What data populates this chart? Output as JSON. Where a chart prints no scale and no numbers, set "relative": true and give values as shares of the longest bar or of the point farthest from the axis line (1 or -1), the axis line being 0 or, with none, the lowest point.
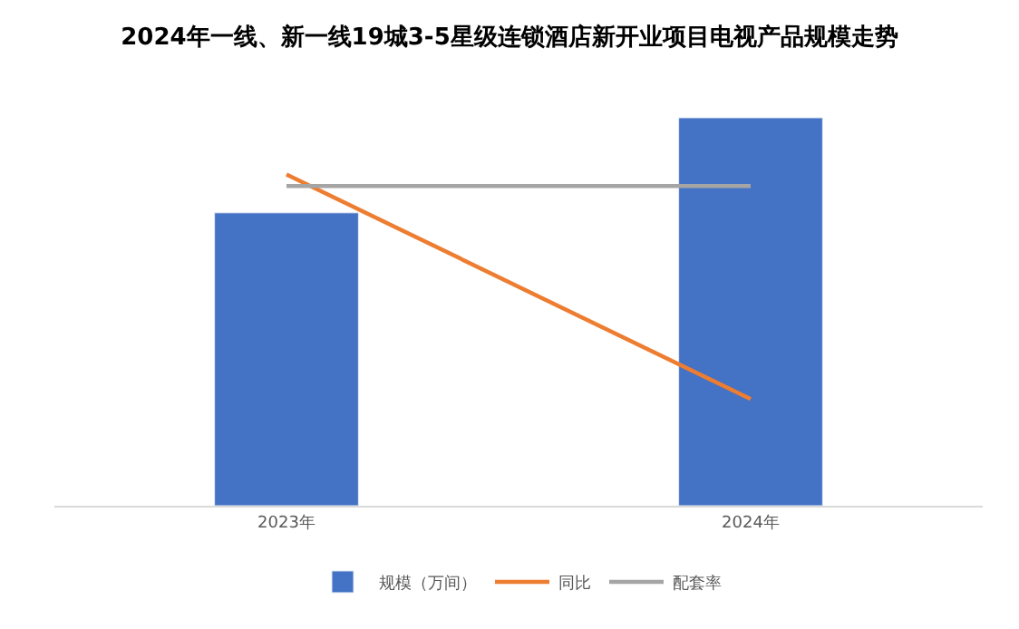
{
  "chart_data": {
    "type": "bar",
    "title": "2024年一线、新一线19城3-5星级连锁酒店新开业项目电视产品规模走势",
    "relative": true,
    "categories": [
      "2023年",
      "2024年"
    ],
    "series": [
      {
        "name": "规模（万间）",
        "color": "#4472c4",
        "values": [
          0.755,
          1
        ]
      },
      {
        "name": "同比",
        "type": "line",
        "color": "#ed7d31",
        "values": [
          0.854,
          0.275
        ]
      },
      {
        "name": "配套率",
        "type": "line",
        "color": "#a5a5a5",
        "values": [
          0.824,
          0.824
        ]
      }
    ],
    "legend": "bottom",
    "marker": "none",
    "line_style": "solid"
  }
}
